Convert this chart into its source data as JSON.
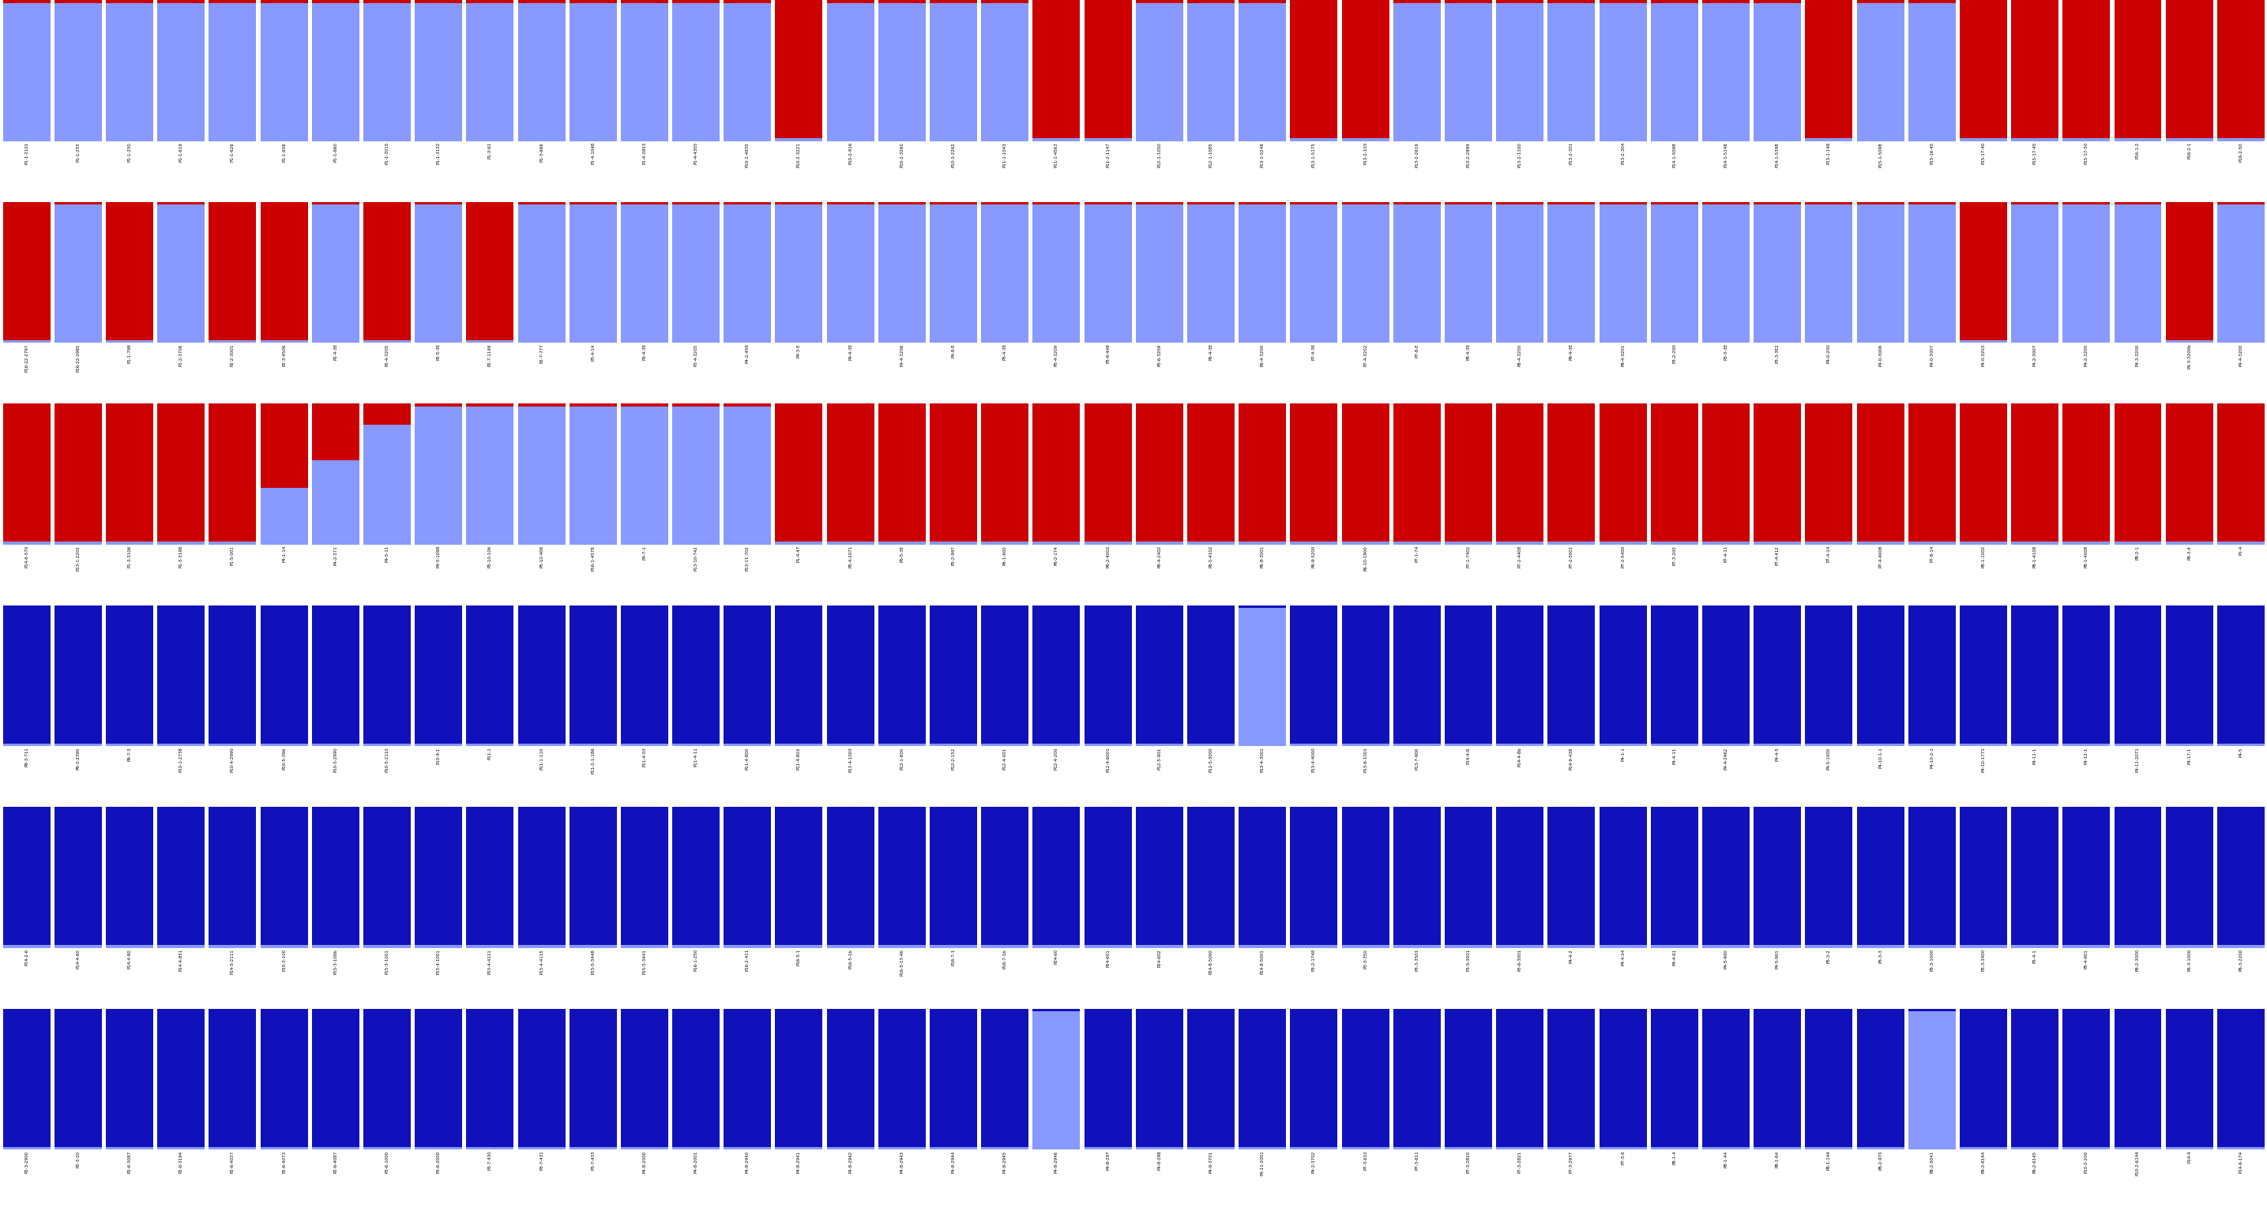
{
  "light_blue": "#8899FF",
  "dark_blue": "#1111BB",
  "red": "#CC0000",
  "background": "#FFFFFF",
  "rows": [
    {
      "pop1_color": "red",
      "individuals": [
        [
          "P1-1-2101",
          0.02
        ],
        [
          "P1-1-255",
          0.02
        ],
        [
          "P1-1-250",
          0.02
        ],
        [
          "P1-1-619",
          0.02
        ],
        [
          "P1-1-626",
          0.02
        ],
        [
          "P1-1-656",
          0.02
        ],
        [
          "P1-1-660",
          0.02
        ],
        [
          "P1-1-3015",
          0.02
        ],
        [
          "P1-1-3152",
          0.02
        ],
        [
          "P1-3-61",
          0.02
        ],
        [
          "P1-3-666",
          0.02
        ],
        [
          "P1-4-1048",
          0.02
        ],
        [
          "P1-4-2853",
          0.02
        ],
        [
          "P1-4-4305",
          0.02
        ],
        [
          "P10-1-4935",
          0.02
        ],
        [
          "P10-2-3221",
          0.98
        ],
        [
          "P10-2-916",
          0.02
        ],
        [
          "P10-2-3260",
          0.02
        ],
        [
          "P10-3-2262",
          0.02
        ],
        [
          "P11-1-1043",
          0.02
        ],
        [
          "P11-1-4563",
          0.98
        ],
        [
          "P11-2-1147",
          0.98
        ],
        [
          "P12-1-1050",
          0.02
        ],
        [
          "P12-1-1085",
          0.02
        ],
        [
          "P13-1-5249",
          0.02
        ],
        [
          "P13-1-5175",
          0.98
        ],
        [
          "P13-2-103",
          0.98
        ],
        [
          "P13-2-2619",
          0.02
        ],
        [
          "P13-2-2894",
          0.02
        ],
        [
          "P13-2-1100",
          0.02
        ],
        [
          "P13-2-301",
          0.02
        ],
        [
          "P13-2-304",
          0.02
        ],
        [
          "P14-1-5098",
          0.02
        ],
        [
          "P14-1-5148",
          0.02
        ],
        [
          "P14-1-5398",
          0.02
        ],
        [
          "P15-1-148",
          0.98
        ],
        [
          "P15-1-5098",
          0.02
        ],
        [
          "P15-16-45",
          0.02
        ],
        [
          "P15-17-40",
          0.98
        ],
        [
          "P15-17-45",
          0.98
        ],
        [
          "P15-17-50",
          0.98
        ],
        [
          "P16-1-2",
          0.98
        ],
        [
          "P16-2-1",
          0.98
        ],
        [
          "P16-2-50",
          0.98
        ]
      ]
    },
    {
      "pop1_color": "red",
      "individuals": [
        [
          "P16-22-2797",
          0.98
        ],
        [
          "P16-22-2985",
          0.02
        ],
        [
          "P1-1-798",
          0.98
        ],
        [
          "P1-2-3706",
          0.02
        ],
        [
          "P2-2-3001",
          0.98
        ],
        [
          "P2-3-4506",
          0.98
        ],
        [
          "P2-4-3E",
          0.02
        ],
        [
          "P2-4-3205",
          0.98
        ],
        [
          "P2-5-3E",
          0.02
        ],
        [
          "P2-7-1148",
          0.98
        ],
        [
          "P2-7-777",
          0.02
        ],
        [
          "P3-4-14",
          0.02
        ],
        [
          "P3-4-3E",
          0.02
        ],
        [
          "P3-4-3205",
          0.02
        ],
        [
          "P4-2-456",
          0.02
        ],
        [
          "P4-3-E",
          0.02
        ],
        [
          "P4-4-3E",
          0.02
        ],
        [
          "P4-4-3206",
          0.02
        ],
        [
          "P4-8-E",
          0.02
        ],
        [
          "P5-4-3E",
          0.02
        ],
        [
          "P5-4-3209",
          0.02
        ],
        [
          "P5-6-448",
          0.02
        ],
        [
          "P5-6-3209",
          0.02
        ],
        [
          "P6-4-3E",
          0.02
        ],
        [
          "P6-4-3200",
          0.02
        ],
        [
          "P7-4-3E",
          0.02
        ],
        [
          "P7-4-3202",
          0.02
        ],
        [
          "P7-8-E",
          0.02
        ],
        [
          "P8-4-3E",
          0.02
        ],
        [
          "P8-4-3200",
          0.02
        ],
        [
          "P9-4-3E",
          0.02
        ],
        [
          "P9-4-3201",
          0.02
        ],
        [
          "P3-2-200",
          0.02
        ],
        [
          "P3-3-3E",
          0.02
        ],
        [
          "P3-3-3E2",
          0.02
        ],
        [
          "P4-0-200",
          0.02
        ],
        [
          "P4-0-3006",
          0.02
        ],
        [
          "P4-0-3007",
          0.02
        ],
        [
          "P4-0-3203",
          0.98
        ],
        [
          "P4-2-3007",
          0.02
        ],
        [
          "P4-2-3200",
          0.02
        ],
        [
          "P4-3-3200",
          0.02
        ],
        [
          "P4-3-3200b",
          0.98
        ],
        [
          "P4-4-3200",
          0.02
        ]
      ]
    },
    {
      "pop1_color": "red",
      "individuals": [
        [
          "P14-6-570",
          0.98
        ],
        [
          "P13-1-2202",
          0.98
        ],
        [
          "P1-3-3106",
          0.98
        ],
        [
          "P1-3-3198",
          0.98
        ],
        [
          "P1-5-001",
          0.98
        ],
        [
          "P4-1-14",
          0.6
        ],
        [
          "P4-2-571",
          0.4
        ],
        [
          "P4-5-11",
          0.15
        ],
        [
          "P4-5-1098",
          0.02
        ],
        [
          "P5-10-106",
          0.02
        ],
        [
          "P5-10-406",
          0.02
        ],
        [
          "P16-1-4578",
          0.02
        ],
        [
          "P4-7-1",
          0.02
        ],
        [
          "P13-10-742",
          0.02
        ],
        [
          "P13-11-702",
          0.02
        ],
        [
          "P1-4-47",
          0.98
        ],
        [
          "P5-4-2071",
          0.98
        ],
        [
          "P5-5-3E",
          0.98
        ],
        [
          "P5-2-997",
          0.98
        ],
        [
          "P6-1-600",
          0.98
        ],
        [
          "P6-2-174",
          0.98
        ],
        [
          "P6-2-4002",
          0.98
        ],
        [
          "P6-4-2402",
          0.98
        ],
        [
          "P6-5-4102",
          0.98
        ],
        [
          "P6-8-3001",
          0.98
        ],
        [
          "P6-9-5200",
          0.98
        ],
        [
          "P6-10-1900",
          0.98
        ],
        [
          "P7-1-74",
          0.98
        ],
        [
          "P7-1-7402",
          0.98
        ],
        [
          "P7-2-4408",
          0.98
        ],
        [
          "P7-2-5001",
          0.98
        ],
        [
          "P7-2-5400",
          0.98
        ],
        [
          "P7-3-200",
          0.98
        ],
        [
          "P7-4-11",
          0.98
        ],
        [
          "P7-4-412",
          0.98
        ],
        [
          "P7-4-14",
          0.98
        ],
        [
          "P7-4-4008",
          0.98
        ],
        [
          "P7-8-14",
          0.98
        ],
        [
          "P8-1-1002",
          0.98
        ],
        [
          "P8-1-4108",
          0.98
        ],
        [
          "P8-1-4008",
          0.98
        ],
        [
          "P8-2-1",
          0.98
        ],
        [
          "P8-3-4",
          0.98
        ],
        [
          "P1-4",
          0.98
        ]
      ]
    },
    {
      "pop1_color": "dark_blue",
      "individuals": [
        [
          "P9-3-711",
          0.98
        ],
        [
          "P9-3-2390",
          0.98
        ],
        [
          "P9-7-3",
          0.98
        ],
        [
          "P10-1-2738",
          0.98
        ],
        [
          "P10-4-2990",
          0.98
        ],
        [
          "P10-5-396",
          0.98
        ],
        [
          "P10-5-2990",
          0.98
        ],
        [
          "P10-5-2110",
          0.98
        ],
        [
          "P10-4-1",
          0.98
        ],
        [
          "P11-1",
          0.98
        ],
        [
          "P11-1-110",
          0.98
        ],
        [
          "P11-2-1-186",
          0.98
        ],
        [
          "P11-4-03",
          0.98
        ],
        [
          "P11-4-11",
          0.98
        ],
        [
          "P11-4-800",
          0.98
        ],
        [
          "P11-4-803",
          0.98
        ],
        [
          "P11-4-1003",
          0.98
        ],
        [
          "P12-1-600",
          0.98
        ],
        [
          "P12-2-152",
          0.98
        ],
        [
          "P12-4-001",
          0.98
        ],
        [
          "P12-4-200",
          0.98
        ],
        [
          "P12-4-6001",
          0.98
        ],
        [
          "P12-5-901",
          0.98
        ],
        [
          "P12-5-3000",
          0.98
        ],
        [
          "P13-4-3001",
          0.02
        ],
        [
          "P13-4-4000",
          0.98
        ],
        [
          "P13-6-1001",
          0.98
        ],
        [
          "P13-7-900",
          0.98
        ],
        [
          "P14-4-8",
          0.98
        ],
        [
          "P14-4-8b",
          0.98
        ],
        [
          "P14-9-438",
          0.98
        ],
        [
          "P4-1-1",
          0.98
        ],
        [
          "P4-4-11",
          0.98
        ],
        [
          "P4-4-2962",
          0.98
        ],
        [
          "P4-4-5",
          0.98
        ],
        [
          "P4-5-1000",
          0.98
        ],
        [
          "P4-10-1-1",
          0.98
        ],
        [
          "P4-10-2-1",
          0.98
        ],
        [
          "P4-10-1771",
          0.98
        ],
        [
          "P4-11-1",
          0.98
        ],
        [
          "P4-12-1",
          0.98
        ],
        [
          "P4-11-2071",
          0.98
        ],
        [
          "P4-17-1",
          0.98
        ],
        [
          "P4-5",
          0.98
        ]
      ]
    },
    {
      "pop1_color": "dark_blue",
      "individuals": [
        [
          "P14-2-6",
          0.98
        ],
        [
          "P14-4-60",
          0.98
        ],
        [
          "P14-4-80",
          0.98
        ],
        [
          "P14-4-851",
          0.98
        ],
        [
          "P14-5-2111",
          0.98
        ],
        [
          "P15-3-100",
          0.98
        ],
        [
          "P15-3-100b",
          0.98
        ],
        [
          "P15-3-1001",
          0.98
        ],
        [
          "P15-4-1001",
          0.98
        ],
        [
          "P15-4-4111",
          0.98
        ],
        [
          "P15-4-4115",
          0.98
        ],
        [
          "P15-5-3448",
          0.98
        ],
        [
          "P15-5-3441",
          0.98
        ],
        [
          "P16-1-250",
          0.98
        ],
        [
          "P16-2-411",
          0.98
        ],
        [
          "P16-5-1",
          0.98
        ],
        [
          "P16-5-1b",
          0.98
        ],
        [
          "P16-5-13-46",
          0.98
        ],
        [
          "P16-7-1",
          0.98
        ],
        [
          "P16-7-1b",
          0.98
        ],
        [
          "P24-60",
          0.98
        ],
        [
          "P24-601",
          0.98
        ],
        [
          "P24-602",
          0.98
        ],
        [
          "P24-8-5000",
          0.98
        ],
        [
          "P24-8-5001",
          0.98
        ],
        [
          "P3-2-1748",
          0.98
        ],
        [
          "P3-3-350",
          0.98
        ],
        [
          "P3-3-3501",
          0.98
        ],
        [
          "P3-5-3001",
          0.98
        ],
        [
          "P3-6-3001",
          0.98
        ],
        [
          "P4-4-2",
          0.98
        ],
        [
          "P4-4-24",
          0.98
        ],
        [
          "P4-4-61",
          0.98
        ],
        [
          "P4-5-900",
          0.98
        ],
        [
          "P4-5-901",
          0.98
        ],
        [
          "P5-3-2",
          0.98
        ],
        [
          "P5-3-3",
          0.98
        ],
        [
          "P5-3-1000",
          0.98
        ],
        [
          "P5-3-3400",
          0.98
        ],
        [
          "P5-4-1",
          0.98
        ],
        [
          "P5-4-901",
          0.98
        ],
        [
          "P6-2-3000",
          0.98
        ],
        [
          "P6-3-1000",
          0.98
        ],
        [
          "P6-3-2200",
          0.98
        ]
      ]
    },
    {
      "pop1_color": "dark_blue",
      "individuals": [
        [
          "P2-3-2900",
          0.98
        ],
        [
          "P2-3-20",
          0.98
        ],
        [
          "P2-6-3087",
          0.98
        ],
        [
          "P2-6-3194",
          0.98
        ],
        [
          "P2-6-4037",
          0.98
        ],
        [
          "P2-6-4073",
          0.98
        ],
        [
          "P2-6-4087",
          0.98
        ],
        [
          "P3-6-1000",
          0.98
        ],
        [
          "P3-6-2000",
          0.98
        ],
        [
          "P3-7-430",
          0.98
        ],
        [
          "P3-7-431",
          0.98
        ],
        [
          "P3-7-433",
          0.98
        ],
        [
          "P4-8-2000",
          0.98
        ],
        [
          "P4-8-2001",
          0.98
        ],
        [
          "P4-8-2940",
          0.98
        ],
        [
          "P4-8-2941",
          0.98
        ],
        [
          "P4-8-2942",
          0.98
        ],
        [
          "P4-8-2943",
          0.98
        ],
        [
          "P4-8-2944",
          0.98
        ],
        [
          "P4-8-2945",
          0.98
        ],
        [
          "P4-8-2946",
          0.02
        ],
        [
          "P4-8-297",
          0.98
        ],
        [
          "P4-8-298",
          0.98
        ],
        [
          "P4-9-3701",
          0.98
        ],
        [
          "P4-11-2001",
          0.98
        ],
        [
          "P4-2-3702",
          0.98
        ],
        [
          "P7-3-610",
          0.98
        ],
        [
          "P7-3-611",
          0.98
        ],
        [
          "P7-3-2820",
          0.98
        ],
        [
          "P7-3-2821",
          0.98
        ],
        [
          "P7-3-2977",
          0.98
        ],
        [
          "P7-3-6",
          0.98
        ],
        [
          "P8-1-4",
          0.98
        ],
        [
          "P8-1-44",
          0.98
        ],
        [
          "P8-1-64",
          0.98
        ],
        [
          "P8-1-144",
          0.98
        ],
        [
          "P8-2-970",
          0.98
        ],
        [
          "P8-2-5041",
          0.02
        ],
        [
          "P9-2-6144",
          0.98
        ],
        [
          "P9-2-6145",
          0.98
        ],
        [
          "P10-2-200",
          0.98
        ],
        [
          "P10-2-6144",
          0.98
        ],
        [
          "P14-4",
          0.98
        ],
        [
          "P14-6-174",
          0.98
        ]
      ]
    }
  ]
}
